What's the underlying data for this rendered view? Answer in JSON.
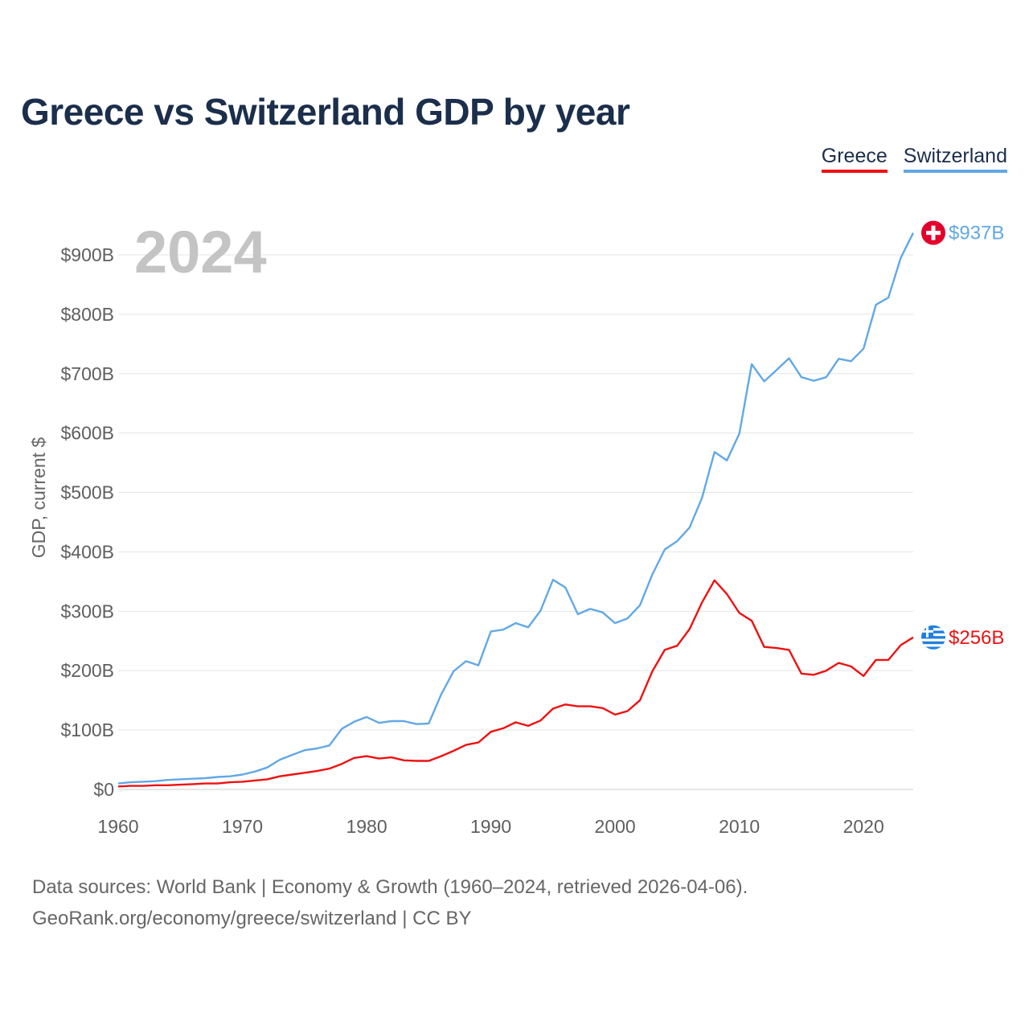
{
  "header": {
    "title": "Greece vs Switzerland GDP by year"
  },
  "legend": [
    {
      "label": "Greece",
      "color": "#ee1111"
    },
    {
      "label": "Switzerland",
      "color": "#62a8e5"
    }
  ],
  "source": {
    "line1": "Data sources: World Bank | Economy & Growth (1960–2024, retrieved 2026-04-06).",
    "line2": "GeoRank.org/economy/greece/switzerland | CC BY"
  },
  "chart_data": {
    "type": "line",
    "title": "Greece vs Switzerland GDP by year",
    "xlabel": "",
    "ylabel": "GDP, current $",
    "year_label": "2024",
    "xlim": [
      1960,
      2024
    ],
    "ylim": [
      0,
      900
    ],
    "x_ticks": [
      1960,
      1970,
      1980,
      1990,
      2000,
      2010,
      2020
    ],
    "y_ticks": [
      {
        "value": 0,
        "label": "$0"
      },
      {
        "value": 100,
        "label": "$100B"
      },
      {
        "value": 200,
        "label": "$200B"
      },
      {
        "value": 300,
        "label": "$300B"
      },
      {
        "value": 400,
        "label": "$400B"
      },
      {
        "value": 500,
        "label": "$500B"
      },
      {
        "value": 600,
        "label": "$600B"
      },
      {
        "value": 700,
        "label": "$700B"
      },
      {
        "value": 800,
        "label": "$800B"
      },
      {
        "value": 900,
        "label": "$900B"
      }
    ],
    "units": "billions of current US$",
    "x": [
      1960,
      1961,
      1962,
      1963,
      1964,
      1965,
      1966,
      1967,
      1968,
      1969,
      1970,
      1971,
      1972,
      1973,
      1974,
      1975,
      1976,
      1977,
      1978,
      1979,
      1980,
      1981,
      1982,
      1983,
      1984,
      1985,
      1986,
      1987,
      1988,
      1989,
      1990,
      1991,
      1992,
      1993,
      1994,
      1995,
      1996,
      1997,
      1998,
      1999,
      2000,
      2001,
      2002,
      2003,
      2004,
      2005,
      2006,
      2007,
      2008,
      2009,
      2010,
      2011,
      2012,
      2013,
      2014,
      2015,
      2016,
      2017,
      2018,
      2019,
      2020,
      2021,
      2022,
      2023,
      2024
    ],
    "series": [
      {
        "name": "Switzerland",
        "color": "#62a8e5",
        "end_label": "$937B",
        "flag": "switzerland-flag",
        "values": [
          10,
          12,
          13,
          14,
          16,
          17,
          18,
          19,
          21,
          22,
          25,
          30,
          37,
          50,
          58,
          66,
          69,
          74,
          102,
          114,
          122,
          112,
          115,
          115,
          110,
          111,
          160,
          199,
          216,
          209,
          266,
          269,
          280,
          273,
          301,
          353,
          340,
          295,
          304,
          298,
          280,
          288,
          310,
          362,
          404,
          418,
          441,
          491,
          568,
          554,
          599,
          716,
          687,
          706,
          726,
          694,
          688,
          694,
          725,
          721,
          742,
          816,
          828,
          895,
          937
        ]
      },
      {
        "name": "Greece",
        "color": "#ee1111",
        "end_label": "$256B",
        "flag": "greece-flag",
        "values": [
          5,
          6,
          6,
          7,
          7,
          8,
          9,
          10,
          10,
          12,
          13,
          15,
          17,
          22,
          25,
          28,
          31,
          35,
          43,
          53,
          56,
          52,
          54,
          49,
          48,
          48,
          56,
          65,
          75,
          79,
          97,
          103,
          113,
          107,
          116,
          136,
          143,
          140,
          140,
          137,
          126,
          132,
          150,
          199,
          235,
          242,
          270,
          315,
          352,
          329,
          297,
          284,
          240,
          238,
          235,
          195,
          193,
          200,
          213,
          207,
          191,
          218,
          218,
          243,
          256
        ]
      }
    ]
  }
}
